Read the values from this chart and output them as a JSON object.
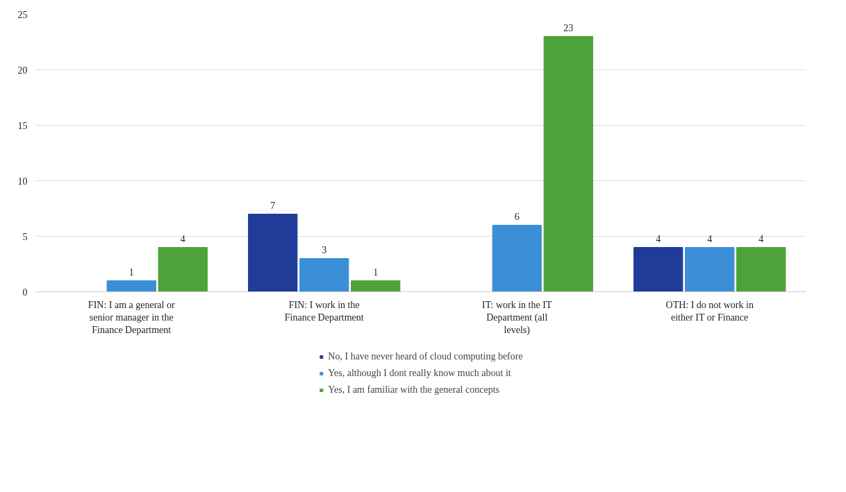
{
  "chart_data": {
    "type": "bar",
    "categories": [
      "FIN: I am a general or senior manager in the Finance Department",
      "FIN: I work in the Finance Department",
      "IT: work in the IT Department (all levels)",
      "OTH: I do not work in either IT or Finance"
    ],
    "series": [
      {
        "name": "No, I have never heard of cloud computing before",
        "color": "#1f3c99",
        "values": [
          null,
          7,
          null,
          4
        ]
      },
      {
        "name": "Yes, although I dont really know much about it",
        "color": "#3a8fd6",
        "values": [
          1,
          3,
          6,
          4
        ]
      },
      {
        "name": "Yes, I am familiar with the general concepts",
        "color": "#4ea23a",
        "values": [
          4,
          1,
          23,
          4
        ]
      }
    ],
    "ylim": [
      0,
      25
    ],
    "yticks": [
      0,
      5,
      10,
      15,
      20,
      25
    ],
    "grid": "y",
    "legend": "bottom",
    "data_labels": true
  }
}
